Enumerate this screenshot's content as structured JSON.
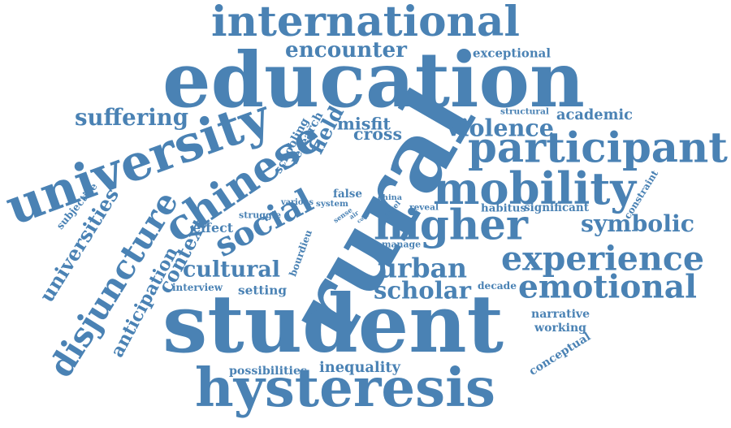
{
  "color": "#4a82b4",
  "words": [
    "international",
    "education",
    "encounter",
    "exceptional",
    "suffering",
    "structural",
    "academic",
    "university",
    "chinese",
    "rural",
    "violence",
    "participant",
    "misfit",
    "cross",
    "schooling",
    "research",
    "field",
    "mobility",
    "universities",
    "disjuncture",
    "social",
    "higher",
    "symbolic",
    "habitus",
    "significant",
    "constraint",
    "experience",
    "urban",
    "cultural",
    "context",
    "effect",
    "anticipation",
    "scholar",
    "decade",
    "emotional",
    "student",
    "narrative",
    "working",
    "conceptual",
    "hysteresis",
    "inequality",
    "possibilities",
    "setting",
    "interview",
    "bourdieu",
    "struggle",
    "various",
    "system",
    "false",
    "sense",
    "china",
    "level",
    "reveal",
    "manage",
    "subjective",
    "air",
    "core"
  ]
}
